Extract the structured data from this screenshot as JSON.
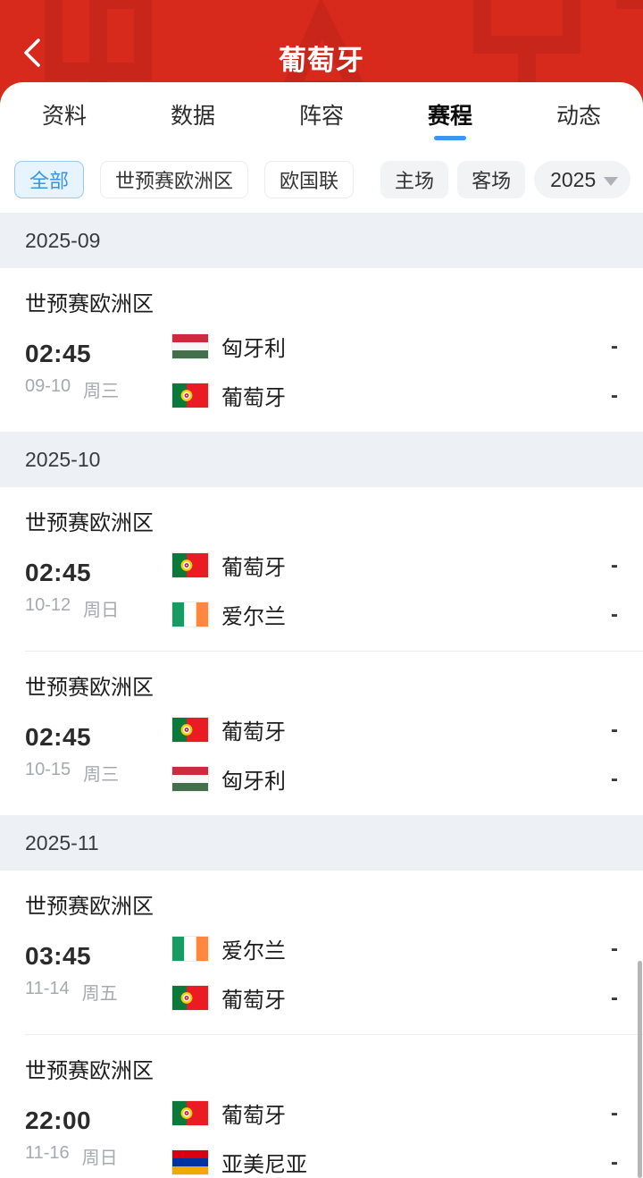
{
  "header": {
    "title": "葡萄牙"
  },
  "tabs": [
    {
      "label": "资料",
      "active": false
    },
    {
      "label": "数据",
      "active": false
    },
    {
      "label": "阵容",
      "active": false
    },
    {
      "label": "赛程",
      "active": true
    },
    {
      "label": "动态",
      "active": false
    }
  ],
  "filters": {
    "competition_chips": [
      {
        "label": "全部",
        "selected": true
      },
      {
        "label": "世预赛欧洲区",
        "selected": false
      },
      {
        "label": "欧国联",
        "selected": false
      }
    ],
    "venue_chips": [
      {
        "label": "主场"
      },
      {
        "label": "客场"
      }
    ],
    "year_select": {
      "value": "2025",
      "icon": "caret-down-icon"
    }
  },
  "colors": {
    "header_red": "#d8291d",
    "accent_blue": "#3795e9",
    "tab_underline_blue": "#3b96ee",
    "month_band_bg": "#edf1f5",
    "date_gray": "#a6a9ae"
  },
  "sections": [
    {
      "month": "2025-09",
      "matches": [
        {
          "competition": "世预赛欧洲区",
          "time": "02:45",
          "date": "09-10",
          "weekday": "周三",
          "home": {
            "name": "匈牙利",
            "flag": "hungary"
          },
          "away": {
            "name": "葡萄牙",
            "flag": "portugal"
          },
          "home_score": "-",
          "away_score": "-"
        }
      ]
    },
    {
      "month": "2025-10",
      "matches": [
        {
          "competition": "世预赛欧洲区",
          "time": "02:45",
          "date": "10-12",
          "weekday": "周日",
          "home": {
            "name": "葡萄牙",
            "flag": "portugal"
          },
          "away": {
            "name": "爱尔兰",
            "flag": "ireland"
          },
          "home_score": "-",
          "away_score": "-"
        },
        {
          "competition": "世预赛欧洲区",
          "time": "02:45",
          "date": "10-15",
          "weekday": "周三",
          "home": {
            "name": "葡萄牙",
            "flag": "portugal"
          },
          "away": {
            "name": "匈牙利",
            "flag": "hungary"
          },
          "home_score": "-",
          "away_score": "-"
        }
      ]
    },
    {
      "month": "2025-11",
      "matches": [
        {
          "competition": "世预赛欧洲区",
          "time": "03:45",
          "date": "11-14",
          "weekday": "周五",
          "home": {
            "name": "爱尔兰",
            "flag": "ireland"
          },
          "away": {
            "name": "葡萄牙",
            "flag": "portugal"
          },
          "home_score": "-",
          "away_score": "-"
        },
        {
          "competition": "世预赛欧洲区",
          "time": "22:00",
          "date": "11-16",
          "weekday": "周日",
          "home": {
            "name": "葡萄牙",
            "flag": "portugal"
          },
          "away": {
            "name": "亚美尼亚",
            "flag": "armenia"
          },
          "home_score": "-",
          "away_score": "-"
        }
      ]
    }
  ]
}
